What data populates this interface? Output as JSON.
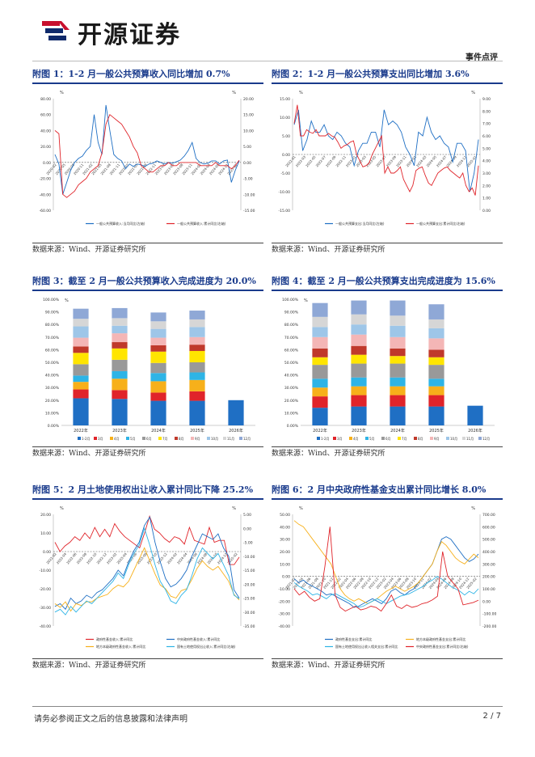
{
  "header": {
    "logo_text": "开源证券",
    "report_type": "事件点评"
  },
  "footer": {
    "disclaimer": "请务必参阅正文之后的信息披露和法律声明",
    "page": "2 / 7"
  },
  "source_text": "数据来源：Wind、开源证券研究所",
  "colors": {
    "blue": "#1f6fc4",
    "red": "#e0242a",
    "orange": "#f7b01a",
    "cyan": "#2eb4e6",
    "title_blue": "#1a3b8c"
  },
  "figures": [
    {
      "title": "附图 1：1-2 月一般公共预算收入同比增加 0.7%",
      "source": "数据来源：Wind、开源证券研究所",
      "chart_data": {
        "type": "line",
        "left_unit": "%",
        "right_unit": "%",
        "left_ticks": [
          "80.00",
          "60.00",
          "40.00",
          "20.00",
          "0.00",
          "-20.00",
          "-40.00",
          "-60.00"
        ],
        "right_ticks": [
          "20.00",
          "15.00",
          "10.00",
          "5.00",
          "0.00",
          "-5.00",
          "-10.00",
          "-15.00"
        ],
        "x_labels": [
          "2020-02",
          "2020-05",
          "2020-08",
          "2020-11",
          "2021-02",
          "2021-05",
          "2021-08",
          "2021-11",
          "2022-02",
          "2022-05",
          "2022-08",
          "2022-11",
          "2023-02",
          "2023-05",
          "2023-08",
          "2023-11",
          "2024-02",
          "2024-05",
          "2024-08",
          "2024-11",
          "2025-02"
        ],
        "series": [
          {
            "name": "一般公共预算收入:当月同比(左轴)",
            "axis": "left",
            "color": "#1f6fc4",
            "values": [
              10,
              -2,
              -40,
              -25,
              -10,
              0,
              5,
              8,
              15,
              20,
              60,
              25,
              10,
              72,
              40,
              10,
              5,
              2,
              -8,
              -2,
              -5,
              -2,
              -3,
              -5,
              -2,
              -1,
              2,
              0,
              -2,
              0,
              -1,
              1,
              3,
              8,
              15,
              25,
              5,
              0,
              -2,
              -1,
              2,
              2,
              -2,
              2,
              3,
              -25,
              -10,
              2
            ]
          },
          {
            "name": "一般公共预算收入:累计同比(右轴)",
            "axis": "right",
            "color": "#e0242a",
            "values": [
              10,
              9,
              -10,
              -11,
              -10,
              -9,
              -7,
              -6,
              -5,
              -3,
              -2,
              -1,
              3,
              12,
              15,
              14,
              13,
              12,
              10,
              8,
              5,
              3,
              -1,
              -2,
              -3,
              -3,
              -2,
              -1,
              -1,
              0,
              -1,
              -1,
              0,
              0,
              0,
              0,
              0,
              -1,
              -1,
              -1,
              -1,
              0,
              -1,
              -1,
              -1,
              -2,
              -1,
              0.7
            ]
          }
        ]
      }
    },
    {
      "title": "附图 2：1-2 月一般公共预算支出同比增加 3.6%",
      "source": "数据来源：Wind、开源证券研究所",
      "chart_data": {
        "type": "line",
        "left_unit": "%",
        "right_unit": "%",
        "left_ticks": [
          "15.00",
          "10.00",
          "5.00",
          "0.00",
          "-5.00",
          "-10.00",
          "-15.00"
        ],
        "right_ticks": [
          "9.00",
          "8.00",
          "7.00",
          "6.00",
          "5.00",
          "4.00",
          "3.00",
          "2.00",
          "1.00",
          "0.00"
        ],
        "x_labels": [
          "2022-01",
          "2022-03",
          "2022-05",
          "2022-07",
          "2022-09",
          "2022-11",
          "2023-01",
          "2023-03",
          "2023-05",
          "2023-07",
          "2023-09",
          "2023-11",
          "2024-01",
          "2024-03",
          "2024-05",
          "2024-07",
          "2024-09",
          "2024-11",
          "2025-01"
        ],
        "series": [
          {
            "name": "一般公共预算支出:当月同比(左轴)",
            "axis": "left",
            "color": "#1f6fc4",
            "values": [
              8,
              12,
              1,
              4,
              9,
              6,
              6,
              8,
              5,
              4,
              6,
              5,
              3,
              2,
              -3,
              1,
              3,
              3,
              6,
              6,
              2,
              12,
              8,
              9,
              8,
              6,
              2,
              0,
              -3,
              6,
              5,
              10,
              6,
              4,
              5,
              3,
              2,
              -2,
              3,
              3,
              1,
              -10,
              -5,
              4
            ]
          },
          {
            "name": "一般公共预算支出:累计同比(右轴)",
            "axis": "right",
            "color": "#e0242a",
            "values": [
              7,
              8.5,
              6,
              6,
              6.5,
              6.3,
              6.2,
              6.5,
              6,
              6,
              6,
              6.2,
              6,
              5.9,
              5.5,
              5,
              5.2,
              5.3,
              5.5,
              5.6,
              4.5,
              4,
              3.5,
              3.6,
              3.8,
              4.5,
              5,
              5.5,
              6,
              3,
              3.5,
              3,
              3,
              3.2,
              3.5,
              2.5,
              2,
              1.5,
              2,
              3.2,
              3.4,
              3.5,
              2.8,
              2.2,
              2,
              2.5,
              3,
              3.2,
              3.4,
              3.5,
              3.2,
              3,
              2.8,
              2.6,
              3,
              2,
              1.5,
              1.8,
              1.2,
              3.6
            ]
          }
        ]
      }
    },
    {
      "title": "附图 3：截至 2 月一般公共预算收入完成进度为 20.0%",
      "source": "数据来源：Wind、开源证券研究所",
      "chart_data": {
        "type": "bar",
        "stacked": true,
        "unit": "%",
        "y_ticks": [
          "100.00%",
          "90.00%",
          "80.00%",
          "70.00%",
          "60.00%",
          "50.00%",
          "40.00%",
          "30.00%",
          "20.00%",
          "10.00%",
          "0.00%"
        ],
        "categories": [
          "2022年",
          "2023年",
          "2024年",
          "2025年",
          "2026年"
        ],
        "legend": [
          "1-2月",
          "3月",
          "4月",
          "5月",
          "6月",
          "7月",
          "8月",
          "9月",
          "10月",
          "11月",
          "12月"
        ],
        "series_colors": [
          "#1f6fc4",
          "#e0242a",
          "#f7b01a",
          "#2eb4e6",
          "#999999",
          "#ffe500",
          "#c0392b",
          "#f4b6b6",
          "#9ec6e8",
          "#d6d6d6",
          "#8fa8d6"
        ],
        "values": [
          [
            21.5,
            7,
            6,
            5,
            9,
            9,
            5,
            7,
            9,
            6,
            8
          ],
          [
            21,
            7,
            9,
            6,
            9,
            9,
            5,
            7,
            6,
            6,
            8
          ],
          [
            19.5,
            6.5,
            9,
            6.5,
            8,
            9,
            5,
            6,
            7,
            6,
            7
          ],
          [
            19.5,
            7.5,
            9,
            6,
            8,
            9,
            5,
            6,
            8,
            6,
            7
          ],
          [
            20
          ]
        ]
      }
    },
    {
      "title": "附图 4：截至 2 月一般公共预算支出完成进度为 15.6%",
      "source": "数据来源：Wind、开源证券研究所",
      "chart_data": {
        "type": "bar",
        "stacked": true,
        "unit": "%",
        "y_ticks": [
          "100.00%",
          "90.00%",
          "80.00%",
          "70.00%",
          "60.00%",
          "50.00%",
          "40.00%",
          "30.00%",
          "20.00%",
          "10.00%",
          "0.00%"
        ],
        "categories": [
          "2022年",
          "2023年",
          "2024年",
          "2025年",
          "2026年"
        ],
        "legend": [
          "1-2月",
          "3月",
          "4月",
          "5月",
          "6月",
          "7月",
          "8月",
          "9月",
          "10月",
          "11月",
          "12月"
        ],
        "series_colors": [
          "#1f6fc4",
          "#e0242a",
          "#f7b01a",
          "#2eb4e6",
          "#999999",
          "#ffe500",
          "#c0392b",
          "#f4b6b6",
          "#9ec6e8",
          "#d6d6d6",
          "#8fa8d6"
        ],
        "values": [
          [
            14,
            9,
            7,
            7,
            11,
            6,
            7,
            9,
            8,
            8,
            11
          ],
          [
            15,
            9,
            7,
            7,
            11,
            7,
            7,
            9,
            8,
            8,
            11
          ],
          [
            15,
            9,
            7,
            7,
            11,
            6,
            6,
            9,
            9,
            8,
            12
          ],
          [
            15,
            9,
            7,
            6,
            11,
            6,
            6,
            9,
            8,
            7,
            12
          ],
          [
            15.6
          ]
        ]
      }
    },
    {
      "title": "附图 5：2 月土地使用权出让收入累计同比下降 25.2%",
      "source": "数据来源：Wind、开源证券研究所",
      "chart_data": {
        "type": "line",
        "left_unit": "%",
        "right_unit": "%",
        "left_ticks": [
          "20.00",
          "10.00",
          "0.00",
          "-10.00",
          "-20.00",
          "-30.00",
          "-40.00"
        ],
        "right_ticks": [
          "5.00",
          "0.00",
          "-5.00",
          "-10.00",
          "-15.00",
          "-20.00",
          "-25.00",
          "-30.00",
          "-35.00"
        ],
        "x_labels": [
          "2022-02",
          "2022-04",
          "2022-06",
          "2022-08",
          "2022-10",
          "2022-12",
          "2023-02",
          "2023-04",
          "2023-06",
          "2023-08",
          "2023-10",
          "2023-12",
          "2024-02",
          "2024-04",
          "2024-06",
          "2024-08",
          "2024-10",
          "2024-12",
          "2025-02"
        ],
        "series": [
          {
            "name": "政府性基金收入:累计同比",
            "axis": "left",
            "color": "#e0242a",
            "values": [
              5,
              0,
              3,
              5,
              8,
              6,
              10,
              7,
              13,
              8,
              12,
              8,
              15,
              11,
              8,
              6,
              4,
              2,
              10,
              19,
              12,
              10,
              7,
              5,
              8,
              7,
              4,
              13,
              6,
              5,
              4,
              13,
              5,
              6,
              6,
              -7,
              -7,
              -3
            ]
          },
          {
            "name": "中央政府性基金收入:累计同比",
            "axis": "right",
            "color": "#1f6fc4",
            "values": [
              -28,
              -27,
              -29,
              -25,
              -27,
              -26,
              -24,
              -25,
              -23,
              -22,
              -20,
              -18,
              -15,
              -17,
              -12,
              -8,
              -5,
              1,
              4,
              -5,
              -12,
              -18,
              -21,
              -20,
              -18,
              -15,
              -10,
              -6,
              -2,
              -3,
              -4,
              -2,
              -7,
              -10,
              -22,
              -25
            ]
          },
          {
            "name": "地方本级政府性基金收入:累计同比",
            "axis": "left",
            "color": "#f7b01a",
            "values": [
              -28,
              -30,
              -27,
              -32,
              -28,
              -29,
              -27,
              -27,
              -25,
              -24,
              -23,
              -20,
              -18,
              -19,
              -16,
              -10,
              -4,
              2,
              -5,
              -12,
              -18,
              -20,
              -24,
              -25,
              -21,
              -20,
              -15,
              -9,
              -5,
              -8,
              -10,
              -8,
              -12,
              -16,
              -23,
              -26
            ]
          },
          {
            "name": "国有土地使用权出让收入:累计同比(右轴)",
            "axis": "right",
            "color": "#2eb4e6",
            "values": [
              -30,
              -29,
              -31,
              -28,
              -30,
              -28,
              -26,
              -27,
              -25,
              -23,
              -21,
              -19,
              -16,
              -18,
              -13,
              -9,
              -6,
              0,
              -6,
              -13,
              -19,
              -22,
              -26,
              -27,
              -24,
              -22,
              -17,
              -11,
              -7,
              -9,
              -11,
              -9,
              -13,
              -17,
              -24,
              -25.2
            ]
          }
        ]
      }
    },
    {
      "title": "附图 6：2 月中央政府性基金支出累计同比增长 8.0%",
      "source": "数据来源：Wind、开源证券研究所",
      "chart_data": {
        "type": "line",
        "left_unit": "%",
        "right_unit": "%",
        "left_ticks": [
          "50.00",
          "40.00",
          "30.00",
          "20.00",
          "10.00",
          "0.00",
          "-10.00",
          "-20.00",
          "-30.00",
          "-40.00"
        ],
        "right_ticks": [
          "700.00",
          "600.00",
          "500.00",
          "400.00",
          "300.00",
          "200.00",
          "100.00",
          "0.00",
          "-100.00",
          "-200.00"
        ],
        "x_labels": [
          "2021-02",
          "2021-04",
          "2021-06",
          "2021-08",
          "2021-10",
          "2021-12",
          "2022-02",
          "2022-04",
          "2022-06",
          "2022-08",
          "2022-10",
          "2022-12",
          "2023-02",
          "2023-04",
          "2023-06",
          "2023-08",
          "2023-10",
          "2023-12",
          "2024-02",
          "2024-04",
          "2024-06",
          "2024-08",
          "2024-10",
          "2024-12",
          "2025-02"
        ],
        "series": [
          {
            "name": "政府性基金支出:累计同比",
            "axis": "left",
            "color": "#1f6fc4",
            "values": [
              -2,
              -5,
              -3,
              -6,
              -8,
              -10,
              -12,
              -15,
              -14,
              -16,
              -18,
              -20,
              -22,
              -25,
              -24,
              -22,
              -20,
              -18,
              -20,
              -22,
              -18,
              -12,
              -10,
              -13,
              -15,
              -12,
              -10,
              -5,
              0,
              5,
              10,
              20,
              30,
              32,
              30,
              25,
              20,
              15,
              12,
              14,
              18
            ]
          },
          {
            "name": "地方本级政府性基金支出:累计同比",
            "axis": "left",
            "color": "#f7b01a",
            "values": [
              45,
              42,
              40,
              35,
              30,
              25,
              20,
              15,
              10,
              0,
              -10,
              -15,
              -18,
              -20,
              -18,
              -20,
              -22,
              -20,
              -18,
              -15,
              -12,
              -10,
              -8,
              -10,
              -12,
              -10,
              -8,
              -5,
              0,
              5,
              10,
              20,
              28,
              25,
              20,
              15,
              12,
              10,
              14,
              18,
              15
            ]
          },
          {
            "name": "国有土地使用权出让收入相关支出:累计同比",
            "axis": "left",
            "color": "#2eb4e6",
            "values": [
              -5,
              -8,
              -10,
              -12,
              -15,
              -14,
              -16,
              -18,
              -15,
              -14,
              -16,
              -18,
              -20,
              -22,
              -25,
              -24,
              -22,
              -20,
              -18,
              -20,
              -22,
              -20,
              -18,
              -16,
              -15,
              -14,
              -12,
              -10,
              -8,
              -5,
              -3,
              0,
              -2,
              -5,
              -8,
              -10,
              -12,
              -15,
              -12,
              -14,
              -10
            ]
          },
          {
            "name": "中央政府性基金支出:累计同比(右轴)",
            "axis": "right",
            "color": "#e0242a",
            "values": [
              100,
              50,
              80,
              30,
              0,
              20,
              280,
              600,
              50,
              -50,
              -80,
              -60,
              -40,
              -70,
              -60,
              -40,
              -50,
              -80,
              -20,
              50,
              -40,
              -60,
              -30,
              -50,
              -40,
              -20,
              -10,
              10,
              40,
              400,
              200,
              150,
              100,
              -30,
              -20,
              -10,
              8
            ]
          }
        ]
      }
    }
  ]
}
